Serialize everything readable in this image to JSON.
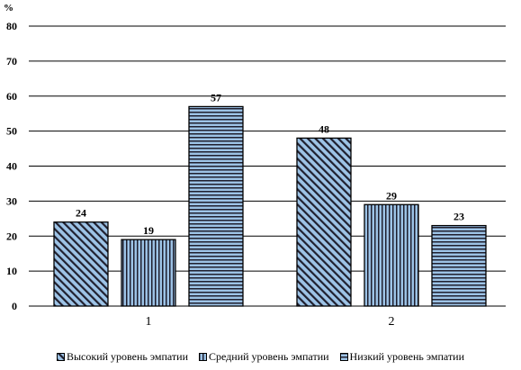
{
  "chart_data": {
    "type": "bar",
    "ylabel": "%",
    "xlabel": "",
    "ylim": [
      0,
      80
    ],
    "yticks": [
      "0",
      "10",
      "20",
      "30",
      "40",
      "50",
      "60",
      "70",
      "80"
    ],
    "categories": [
      "1",
      "2"
    ],
    "series": [
      {
        "name": "Высокий уровень эмпатии",
        "values": [
          24,
          48
        ],
        "pattern": "diagonal",
        "color": "#9dc3e6"
      },
      {
        "name": "Средний уровень эмпатии",
        "values": [
          19,
          29
        ],
        "pattern": "vertical",
        "color": "#9dc3e6"
      },
      {
        "name": "Низкий уровень эмпатии",
        "values": [
          57,
          23
        ],
        "pattern": "horizontal",
        "color": "#9dc3e6"
      }
    ],
    "grid": true,
    "legend_position": "bottom"
  }
}
